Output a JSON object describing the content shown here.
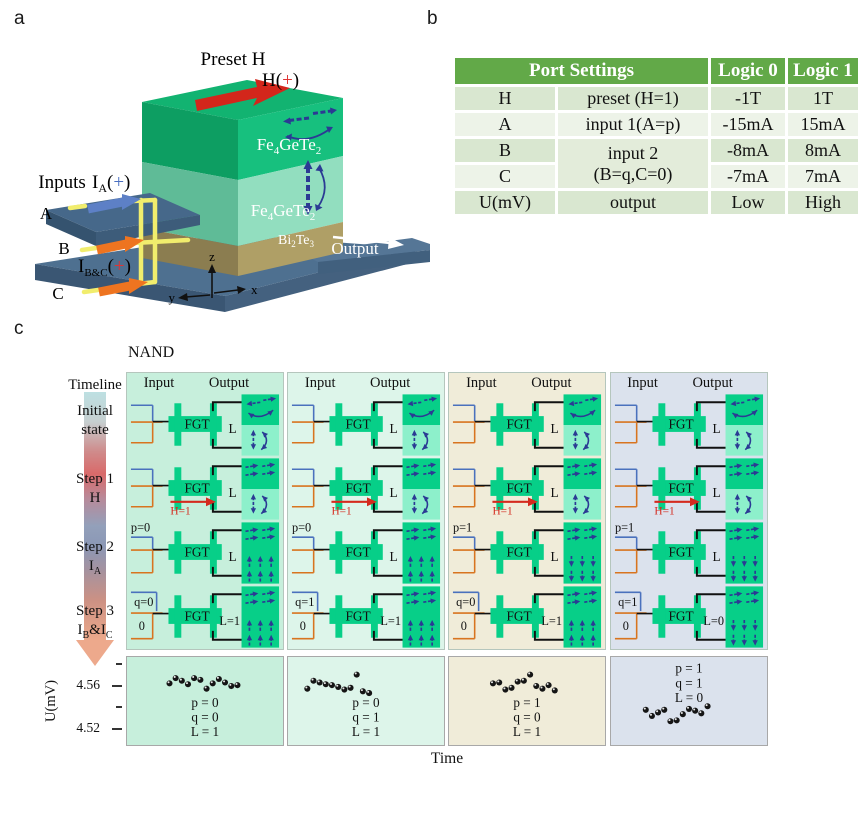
{
  "a": {
    "label": "a",
    "preset_h": "Preset H",
    "h_plus": {
      "pre": "H(",
      "plus": "+",
      "post": ")"
    },
    "inputs": "Inputs",
    "ia": {
      "base": "I",
      "sub": "A",
      "open": "(",
      "plus": "+",
      "close": ")"
    },
    "ibc": {
      "base": "I",
      "sub": "B&C",
      "open": "(",
      "plus": "+",
      "close": ")"
    },
    "electrodes": {
      "a": "A",
      "b": "B",
      "c": "C"
    },
    "fgt": [
      [
        "Fe",
        0
      ],
      [
        "4",
        1
      ],
      [
        "GeTe",
        0
      ],
      [
        "2",
        1
      ]
    ],
    "bite": [
      [
        "Bi",
        0
      ],
      [
        "2",
        1
      ],
      [
        "Te",
        0
      ],
      [
        "3",
        1
      ]
    ],
    "output": "Output",
    "axes": {
      "x": "x",
      "y": "y",
      "z": "z"
    }
  },
  "b": {
    "label": "b",
    "header": [
      "Port Settings",
      "Logic 0",
      "Logic 1"
    ],
    "rows": [
      {
        "port": "H",
        "desc": "preset (H=1)",
        "logic0": "-1T",
        "logic1": "1T"
      },
      {
        "port": "A",
        "desc": "input 1(A=p)",
        "logic0": "-15mA",
        "logic1": "15mA"
      },
      {
        "port": "B",
        "desc_line1": "input 2",
        "desc_line2": "(B=q,C=0)",
        "logic0": "-8mA",
        "logic1": "8mA"
      },
      {
        "port": "C",
        "logic0": "-7mA",
        "logic1": "7mA"
      },
      {
        "port": "U(mV)",
        "desc": "output",
        "logic0": "Low",
        "logic1": "High"
      }
    ]
  },
  "c": {
    "label": "c",
    "title": "NAND",
    "timeline": {
      "header": "Timeline",
      "steps": [
        {
          "l1": "Initial",
          "l2": [
            [
              "state",
              ""
            ]
          ]
        },
        {
          "l1": "Step 1",
          "l2": [
            [
              "H",
              ""
            ]
          ]
        },
        {
          "l1": "Step 2",
          "l2": [
            [
              "I",
              "A"
            ]
          ]
        },
        {
          "l1": "Step 3",
          "l2": [
            [
              "I",
              "B"
            ],
            [
              "&",
              ""
            ],
            [
              "I",
              "C"
            ]
          ]
        }
      ]
    },
    "col_headers": {
      "input": "Input",
      "output": "Output"
    },
    "fgt_label": "FGT",
    "l_label": "L",
    "h_arrow_label": "H=1",
    "yaxis": {
      "label": "U(mV)",
      "ticks": [
        "4.56",
        "4.52"
      ]
    },
    "xaxis": "Time",
    "columns": [
      {
        "bg": "#c7efdc",
        "p": "p=0",
        "q": "q=0",
        "c0": "0",
        "step2_m": "up",
        "step3_m": "up",
        "L_final": "L=1",
        "plot": {
          "labels": [
            "p = 0",
            "q = 0",
            "L = 1"
          ],
          "labels_pos": "below",
          "points": [
            [
              0.27,
              0.3
            ],
            [
              0.31,
              0.24
            ],
            [
              0.35,
              0.27
            ],
            [
              0.39,
              0.31
            ],
            [
              0.43,
              0.24
            ],
            [
              0.47,
              0.26
            ],
            [
              0.51,
              0.36
            ],
            [
              0.55,
              0.3
            ],
            [
              0.59,
              0.25
            ],
            [
              0.63,
              0.29
            ],
            [
              0.67,
              0.33
            ],
            [
              0.71,
              0.32
            ]
          ]
        }
      },
      {
        "bg": "#ddf5ea",
        "p": "p=0",
        "q": "q=1",
        "c0": "0",
        "step2_m": "up",
        "step3_m": "up",
        "L_final": "L=1",
        "plot": {
          "labels": [
            "p = 0",
            "q = 1",
            "L = 1"
          ],
          "labels_pos": "below",
          "points": [
            [
              0.12,
              0.36
            ],
            [
              0.16,
              0.27
            ],
            [
              0.2,
              0.29
            ],
            [
              0.24,
              0.31
            ],
            [
              0.28,
              0.32
            ],
            [
              0.32,
              0.34
            ],
            [
              0.36,
              0.37
            ],
            [
              0.4,
              0.35
            ],
            [
              0.44,
              0.2
            ],
            [
              0.48,
              0.39
            ],
            [
              0.52,
              0.41
            ]
          ]
        }
      },
      {
        "bg": "#f0ecd9",
        "p": "p=1",
        "q": "q=0",
        "c0": "0",
        "step2_m": "down",
        "step3_m": "up",
        "L_final": "L=1",
        "plot": {
          "labels": [
            "p = 1",
            "q = 0",
            "L = 1"
          ],
          "labels_pos": "below",
          "points": [
            [
              0.28,
              0.3
            ],
            [
              0.32,
              0.29
            ],
            [
              0.36,
              0.37
            ],
            [
              0.4,
              0.35
            ],
            [
              0.44,
              0.28
            ],
            [
              0.48,
              0.27
            ],
            [
              0.52,
              0.2
            ],
            [
              0.56,
              0.33
            ],
            [
              0.6,
              0.36
            ],
            [
              0.64,
              0.32
            ],
            [
              0.68,
              0.38
            ]
          ]
        }
      },
      {
        "bg": "#dbe2ed",
        "p": "p=1",
        "q": "q=1",
        "c0": "0",
        "step2_m": "down",
        "step3_m": "down",
        "L_final": "L=0",
        "plot": {
          "labels": [
            "p = 1",
            "q = 1",
            "L = 0"
          ],
          "labels_pos": "above",
          "points": [
            [
              0.22,
              0.6
            ],
            [
              0.26,
              0.67
            ],
            [
              0.3,
              0.63
            ],
            [
              0.34,
              0.6
            ],
            [
              0.38,
              0.73
            ],
            [
              0.42,
              0.72
            ],
            [
              0.46,
              0.65
            ],
            [
              0.5,
              0.59
            ],
            [
              0.54,
              0.61
            ],
            [
              0.58,
              0.64
            ],
            [
              0.62,
              0.56
            ]
          ]
        }
      }
    ]
  }
}
